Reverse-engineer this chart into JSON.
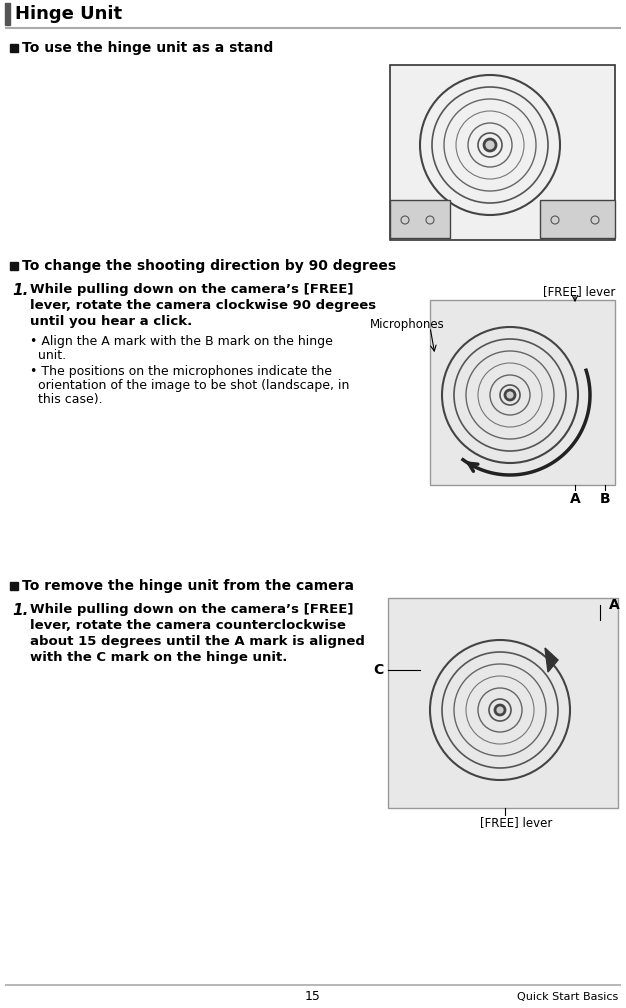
{
  "bg_color": "#ffffff",
  "header_text": "Hinge Unit",
  "section1_title": "  To use the hinge unit as a stand",
  "section2_title": "  To change the shooting direction by 90 degrees",
  "section3_title": "  To remove the hinge unit from the camera",
  "step1_line1": "While pulling down on the camera’s [FREE]",
  "step1_line2": "lever, rotate the camera clockwise 90 degrees",
  "step1_line3": "until you hear a click.",
  "bullet1_line1": "Align the A mark with the B mark on the hinge",
  "bullet1_line2": "unit.",
  "bullet2_line1": "The positions on the microphones indicate the",
  "bullet2_line2": "orientation of the image to be shot (landscape, in",
  "bullet2_line3": "this case).",
  "step2_line1": "While pulling down on the camera’s [FREE]",
  "step2_line2": "lever, rotate the camera counterclockwise",
  "step2_line3": "about 15 degrees until the A mark is aligned",
  "step2_line4": "with the C mark on the hinge unit.",
  "label_free_lever1": "[FREE] lever",
  "label_microphones": "Microphones",
  "label_A_mid": "A",
  "label_B_mid": "B",
  "label_free_lever2": "[FREE] lever",
  "label_A_bot": "A",
  "label_C_bot": "C",
  "footer_page": "15",
  "footer_right": "Quick Start Basics",
  "text_color": "#000000",
  "gray_line_color": "#aaaaaa",
  "header_bar_color": "#555555"
}
